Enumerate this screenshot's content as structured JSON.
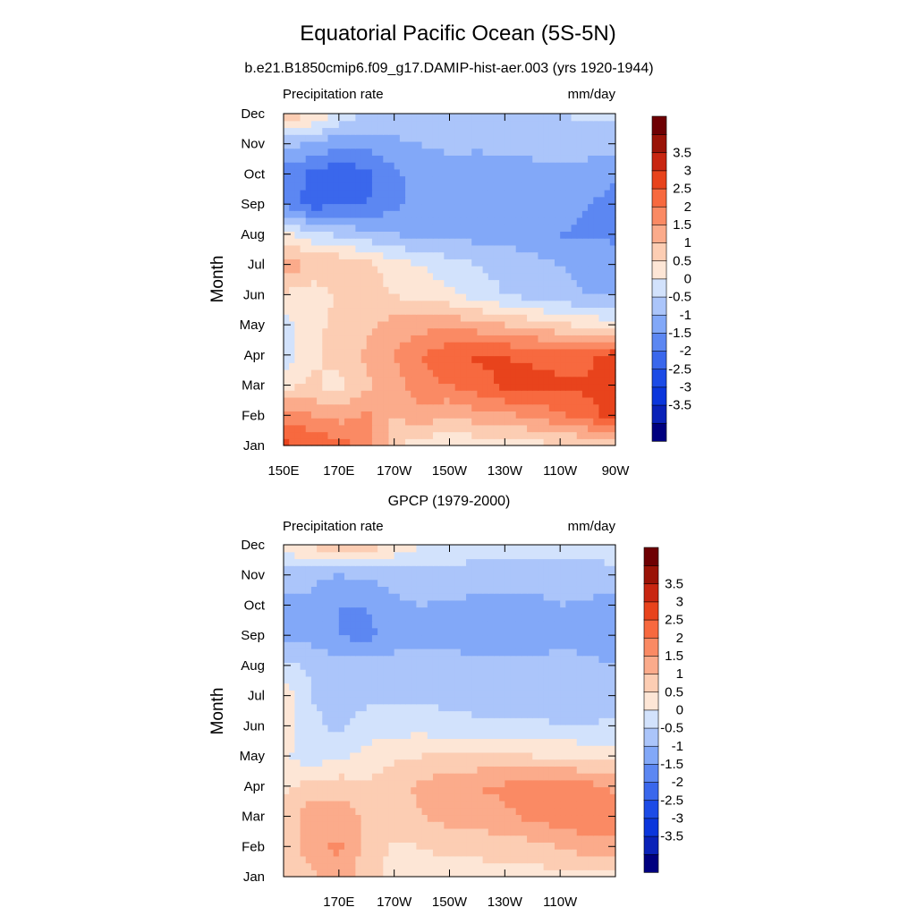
{
  "figure": {
    "title": "Equatorial Pacific Ocean (5S-5N)"
  },
  "colorbar": {
    "colors": [
      "#00007f",
      "#0a22b8",
      "#0b36dc",
      "#1c4be6",
      "#3a67ec",
      "#5c87f2",
      "#82a8f8",
      "#abc5fa",
      "#d2e2fc",
      "#fde6d6",
      "#fccdb3",
      "#fbab8b",
      "#fa8a64",
      "#f7693f",
      "#e8431c",
      "#c82611",
      "#9a1307",
      "#6e0003"
    ],
    "labels": [
      "-3.5",
      "-3",
      "-2.5",
      "-2",
      "-1.5",
      "-1",
      "-0.5",
      "0",
      "0.5",
      "1",
      "1.5",
      "2",
      "2.5",
      "3",
      "3.5"
    ]
  },
  "panels": [
    {
      "subtitle": "b.e21.B1850cmip6.f09_g17.DAMIP-hist-aer.003 (yrs 1920-1944)",
      "left_string": "Precipitation rate",
      "right_string": "mm/day",
      "ylabel": "Month",
      "xtick_labels": [
        "150E",
        "170E",
        "170W",
        "150W",
        "130W",
        "110W",
        "90W"
      ],
      "ytick_labels": [
        "Jan",
        "Feb",
        "Mar",
        "Apr",
        "May",
        "Jun",
        "Jul",
        "Aug",
        "Sep",
        "Oct",
        "Nov",
        "Dec"
      ]
    },
    {
      "subtitle": "GPCP (1979-2000)",
      "left_string": "Precipitation rate",
      "right_string": "mm/day",
      "ylabel": "Month",
      "xtick_labels": [
        "170E",
        "170W",
        "150W",
        "130W",
        "110W"
      ],
      "ytick_labels": [
        "Jan",
        "Feb",
        "Mar",
        "Apr",
        "May",
        "Jun",
        "Jul",
        "Aug",
        "Sep",
        "Oct",
        "Nov",
        "Dec"
      ]
    }
  ],
  "chart_data": [
    {
      "type": "heatmap",
      "title": "Equatorial Pacific Ocean (5S-5N)",
      "subtitle": "b.e21.B1850cmip6.f09_g17.DAMIP-hist-aer.003 (yrs 1920-1944)",
      "left_string": "Precipitation rate",
      "units": "mm/day",
      "ylabel": "Month",
      "x": [
        "150E",
        "160E",
        "170E",
        "180",
        "170W",
        "160W",
        "150W",
        "140W",
        "130W",
        "120W",
        "110W",
        "100W",
        "90W"
      ],
      "y": [
        "Jan",
        "Feb",
        "Mar",
        "Apr",
        "May",
        "Jun",
        "Jul",
        "Aug",
        "Sep",
        "Oct",
        "Nov",
        "Dec"
      ],
      "values": [
        [
          2.6,
          2.6,
          2.2,
          1.9,
          0.6,
          0.2,
          0.1,
          0.1,
          0.2,
          0.3,
          0.4,
          0.4,
          0.5
        ],
        [
          1.8,
          1.5,
          1.3,
          1.6,
          1.0,
          1.3,
          1.0,
          1.3,
          1.4,
          1.6,
          1.9,
          2.3,
          2.7
        ],
        [
          0.3,
          0.6,
          0.3,
          0.9,
          1.3,
          1.8,
          2.0,
          2.3,
          2.6,
          2.7,
          2.6,
          2.6,
          3.0
        ],
        [
          -0.3,
          0.4,
          0.7,
          1.1,
          1.5,
          2.0,
          2.4,
          2.6,
          2.5,
          2.4,
          2.3,
          2.3,
          2.9
        ],
        [
          -0.3,
          0.4,
          0.6,
          0.9,
          1.2,
          1.3,
          1.4,
          1.2,
          1.0,
          0.8,
          0.6,
          0.4,
          0.2
        ],
        [
          0.4,
          0.2,
          0.6,
          0.8,
          0.5,
          0.3,
          0.1,
          -0.2,
          -0.5,
          -0.7,
          -0.9,
          -1.0,
          -1.1
        ],
        [
          1.4,
          0.9,
          1.0,
          0.7,
          0.2,
          0.0,
          -0.3,
          -0.5,
          -0.7,
          -0.8,
          -1.0,
          -1.1,
          -1.2
        ],
        [
          0.2,
          -0.3,
          -0.6,
          -0.8,
          -1.0,
          -1.1,
          -1.1,
          -1.2,
          -1.2,
          -1.3,
          -1.5,
          -1.6,
          -1.6
        ],
        [
          -1.6,
          -2.2,
          -2.1,
          -2.0,
          -1.6,
          -1.4,
          -1.2,
          -1.2,
          -1.2,
          -1.2,
          -1.3,
          -1.5,
          -1.7
        ],
        [
          -1.7,
          -2.1,
          -2.4,
          -2.2,
          -1.6,
          -1.3,
          -1.2,
          -1.3,
          -1.2,
          -1.1,
          -1.1,
          -1.2,
          -1.4
        ],
        [
          -0.9,
          -1.0,
          -1.4,
          -1.3,
          -1.1,
          -1.0,
          -0.9,
          -0.9,
          -0.9,
          -0.9,
          -0.8,
          -0.8,
          -0.7
        ],
        [
          0.8,
          0.6,
          -0.1,
          -0.6,
          -0.7,
          -0.7,
          -0.6,
          -0.5,
          -0.5,
          -0.5,
          -0.5,
          -0.4,
          -0.4
        ]
      ],
      "levels": [
        -3.5,
        -3,
        -2.5,
        -2,
        -1.5,
        -1,
        -0.5,
        0,
        0.5,
        1,
        1.5,
        2,
        2.5,
        3,
        3.5
      ],
      "xlim": [
        "150E",
        "90W"
      ],
      "ylim": [
        "Jan",
        "Dec"
      ]
    },
    {
      "type": "heatmap",
      "title": "GPCP (1979-2000)",
      "left_string": "Precipitation rate",
      "units": "mm/day",
      "ylabel": "Month",
      "x": [
        "150E",
        "160E",
        "170E",
        "180",
        "170W",
        "160W",
        "150W",
        "140W",
        "130W",
        "120W",
        "110W",
        "100W",
        "90W"
      ],
      "y": [
        "Jan",
        "Feb",
        "Mar",
        "Apr",
        "May",
        "Jun",
        "Jul",
        "Aug",
        "Sep",
        "Oct",
        "Nov",
        "Dec"
      ],
      "values": [
        [
          0.6,
          0.9,
          1.3,
          0.7,
          0.3,
          0.3,
          0.3,
          0.3,
          0.3,
          0.3,
          0.3,
          0.3,
          0.3
        ],
        [
          0.6,
          1.3,
          1.6,
          0.8,
          0.4,
          0.5,
          0.6,
          0.6,
          0.8,
          0.8,
          1.0,
          1.3,
          1.4
        ],
        [
          0.7,
          1.3,
          1.3,
          0.9,
          0.8,
          1.0,
          1.2,
          1.3,
          1.4,
          1.6,
          1.8,
          1.9,
          1.6
        ],
        [
          0.4,
          0.7,
          0.8,
          0.6,
          0.8,
          1.1,
          1.4,
          1.5,
          1.6,
          1.8,
          1.7,
          1.7,
          1.4
        ],
        [
          0.1,
          -0.3,
          -0.1,
          0.2,
          0.4,
          0.5,
          0.6,
          0.6,
          0.6,
          0.5,
          0.5,
          0.4,
          0.3
        ],
        [
          0.4,
          -0.4,
          -0.6,
          -0.3,
          -0.2,
          -0.2,
          -0.3,
          -0.4,
          -0.4,
          -0.4,
          -0.5,
          -0.5,
          -0.4
        ],
        [
          0.4,
          -0.5,
          -0.7,
          -0.6,
          -0.6,
          -0.6,
          -0.7,
          -0.7,
          -0.7,
          -0.7,
          -0.7,
          -0.8,
          -0.7
        ],
        [
          -0.3,
          -0.6,
          -0.8,
          -0.8,
          -0.8,
          -0.8,
          -0.8,
          -0.8,
          -0.9,
          -0.9,
          -0.8,
          -0.9,
          -1.0
        ],
        [
          -1.2,
          -1.2,
          -1.5,
          -1.7,
          -1.2,
          -1.1,
          -1.2,
          -1.3,
          -1.3,
          -1.3,
          -1.1,
          -1.2,
          -1.3
        ],
        [
          -1.1,
          -1.1,
          -1.5,
          -1.5,
          -1.1,
          -1.0,
          -1.1,
          -1.2,
          -1.3,
          -1.2,
          -1.0,
          -1.1,
          -1.3
        ],
        [
          -0.8,
          -0.9,
          -1.0,
          -0.9,
          -0.8,
          -0.7,
          -0.6,
          -0.6,
          -0.6,
          -0.7,
          -0.7,
          -0.7,
          -0.6
        ],
        [
          0.3,
          0.6,
          1.2,
          0.8,
          0.4,
          0.0,
          -0.3,
          -0.4,
          -0.4,
          -0.4,
          -0.3,
          -0.3,
          -0.3
        ]
      ],
      "levels": [
        -3.5,
        -3,
        -2.5,
        -2,
        -1.5,
        -1,
        -0.5,
        0,
        0.5,
        1,
        1.5,
        2,
        2.5,
        3,
        3.5
      ],
      "xlim": [
        "150E",
        "90W"
      ],
      "ylim": [
        "Jan",
        "Dec"
      ]
    }
  ]
}
